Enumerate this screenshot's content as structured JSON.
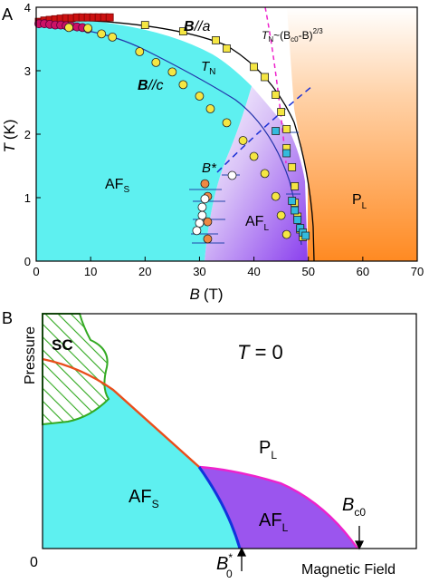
{
  "chart_data": [
    {
      "panel": "A",
      "type": "scatter",
      "xlabel_var": "B",
      "xlabel_unit": "(T)",
      "ylabel_var": "T",
      "ylabel_unit": "(K)",
      "xlim": [
        0,
        70
      ],
      "ylim": [
        0,
        4
      ],
      "xticks": [
        "0",
        "10",
        "20",
        "30",
        "40",
        "50",
        "60",
        "70"
      ],
      "yticks": [
        "0",
        "1",
        "2",
        "3",
        "4"
      ],
      "region_labels": {
        "afs_main": "AF",
        "afs_sub": "S",
        "afl_main": "AF",
        "afl_sub": "L",
        "pl_main": "P",
        "pl_sub": "L"
      },
      "annotations": {
        "b_par_a_bold": "B",
        "b_par_a_rest": "//a",
        "b_par_c_bold": "B",
        "b_par_c_rest": "//c",
        "tn_main": "T",
        "tn_sub": "N",
        "law_T": "T",
        "law_N": "N",
        "law_mid": "~(B",
        "law_c0": "c0",
        "law_end": "-B)",
        "law_exp": "2/3",
        "bstar": "B*"
      },
      "series": [
        {
          "marker": "square",
          "color": "#cc1111",
          "x": [
            0.5,
            1.5,
            2.5,
            3.5,
            4.5,
            5.5,
            6.5,
            7.5,
            8.5,
            9.5,
            10.5,
            11.5,
            12.5,
            13.5
          ],
          "y": [
            3.77,
            3.79,
            3.8,
            3.81,
            3.82,
            3.83,
            3.83,
            3.84,
            3.84,
            3.84,
            3.84,
            3.84,
            3.84,
            3.84
          ]
        },
        {
          "marker": "circle",
          "color": "#cc1166",
          "x": [
            0.5,
            1.5,
            2.5,
            3.5,
            4.5,
            5.5,
            6.5,
            7.5,
            8.5,
            9.5
          ],
          "y": [
            3.74,
            3.74,
            3.73,
            3.72,
            3.72,
            3.71,
            3.7,
            3.69,
            3.68,
            3.66
          ]
        },
        {
          "name": "B//a",
          "marker": "square",
          "color": "#f5e642",
          "x": [
            20,
            27,
            33,
            35,
            40,
            42,
            44,
            45,
            46,
            46,
            47,
            47.5,
            47.5,
            48,
            48.5,
            49
          ],
          "y": [
            3.72,
            3.62,
            3.48,
            3.35,
            3.06,
            2.9,
            2.62,
            2.35,
            2.08,
            1.78,
            1.48,
            1.18,
            0.92,
            0.7,
            0.5,
            0.38
          ]
        },
        {
          "name": "B//c",
          "marker": "circle",
          "color": "#f5e642",
          "x": [
            6,
            9.5,
            12,
            14,
            19,
            22,
            25,
            27,
            30,
            32,
            35,
            38,
            40,
            42,
            44,
            45,
            46
          ],
          "y": [
            3.68,
            3.67,
            3.58,
            3.53,
            3.3,
            3.13,
            2.98,
            2.78,
            2.6,
            2.4,
            2.18,
            1.9,
            1.65,
            1.38,
            1.02,
            0.72,
            0.42
          ]
        },
        {
          "name": "B*",
          "marker": "circle",
          "color": "#ee8844",
          "x": [
            31,
            31.5,
            31.5,
            31.5
          ],
          "y": [
            1.22,
            1.02,
            0.62,
            0.35
          ]
        },
        {
          "marker": "circle",
          "color": "#ffffff",
          "x": [
            36,
            31,
            30.5,
            30.5,
            30,
            29.5
          ],
          "y": [
            1.35,
            0.98,
            0.85,
            0.72,
            0.6,
            0.48
          ]
        },
        {
          "marker": "square",
          "color": "#33bbdd",
          "x": [
            44,
            46,
            47,
            47.5,
            48,
            48.5,
            49,
            49.5
          ],
          "y": [
            2.05,
            1.7,
            0.95,
            0.8,
            0.65,
            0.52,
            0.45,
            0.4
          ]
        }
      ],
      "colors": {
        "afs": "#5ef0f0",
        "afl": "#9b55ee",
        "pl": "#ff8c2a"
      }
    },
    {
      "panel": "B",
      "type": "area",
      "xlabel": "Magnetic Field",
      "ylabel": "Pressure",
      "title_var": "T",
      "title_rest": " = 0",
      "origin_label": "0",
      "region_labels": {
        "sc": "SC",
        "afs_main": "AF",
        "afs_sub": "S",
        "afl_main": "AF",
        "afl_sub": "L",
        "pl_main": "P",
        "pl_sub": "L"
      },
      "markers": {
        "b0_main": "B",
        "b0_sup": "*",
        "b0_sub": "0",
        "bc0_main": "B",
        "bc0_sub": "c0"
      },
      "colors": {
        "afs": "#5ef0f0",
        "afl": "#9b55ee",
        "boundary": "#e94e1b",
        "afl_top": "#ee22cc",
        "afs_afl": "#1133dd",
        "sc": "#33aa22"
      }
    }
  ],
  "panel_labels": {
    "a": "A",
    "b": "B"
  }
}
